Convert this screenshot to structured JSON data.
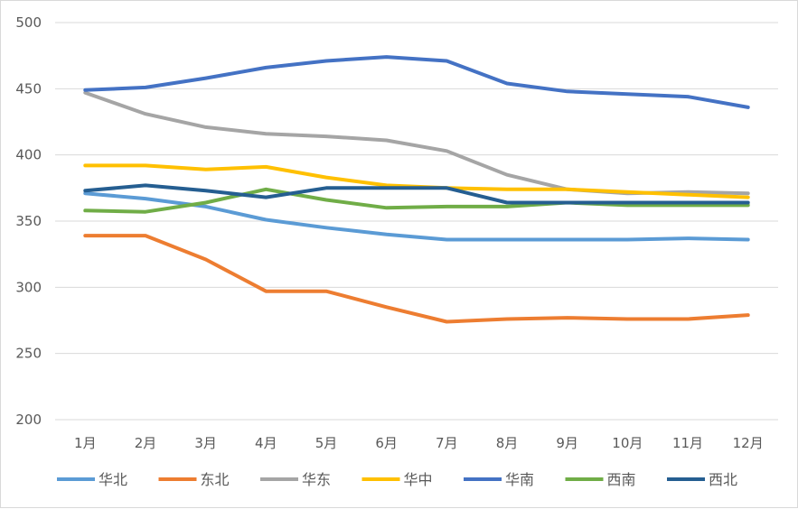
{
  "chart_data": {
    "type": "line",
    "title": "",
    "xlabel": "",
    "ylabel": "",
    "categories": [
      "1月",
      "2月",
      "3月",
      "4月",
      "5月",
      "6月",
      "7月",
      "8月",
      "9月",
      "10月",
      "11月",
      "12月"
    ],
    "ylim": [
      200,
      500
    ],
    "yticks": [
      200,
      250,
      300,
      350,
      400,
      450,
      500
    ],
    "grid": "horizontal",
    "legend_position": "bottom",
    "series": [
      {
        "name": "华北",
        "color": "#5B9BD5",
        "values": [
          371,
          367,
          361,
          351,
          345,
          340,
          336,
          336,
          336,
          336,
          337,
          336
        ]
      },
      {
        "name": "东北",
        "color": "#ED7D31",
        "values": [
          339,
          339,
          321,
          297,
          297,
          285,
          274,
          276,
          277,
          276,
          276,
          279
        ]
      },
      {
        "name": "华东",
        "color": "#A5A5A5",
        "values": [
          447,
          431,
          421,
          416,
          414,
          411,
          403,
          385,
          374,
          371,
          372,
          371
        ]
      },
      {
        "name": "华中",
        "color": "#FFC000",
        "values": [
          392,
          392,
          389,
          391,
          383,
          377,
          375,
          374,
          374,
          372,
          370,
          368
        ]
      },
      {
        "name": "华南",
        "color": "#4472C4",
        "values": [
          449,
          451,
          458,
          466,
          471,
          474,
          471,
          454,
          448,
          446,
          444,
          436
        ]
      },
      {
        "name": "西南",
        "color": "#70AD47",
        "values": [
          358,
          357,
          364,
          374,
          366,
          360,
          361,
          361,
          364,
          362,
          362,
          362
        ]
      },
      {
        "name": "西北",
        "color": "#255E91",
        "values": [
          373,
          377,
          373,
          368,
          375,
          375,
          375,
          364,
          364,
          364,
          364,
          364
        ]
      }
    ]
  }
}
